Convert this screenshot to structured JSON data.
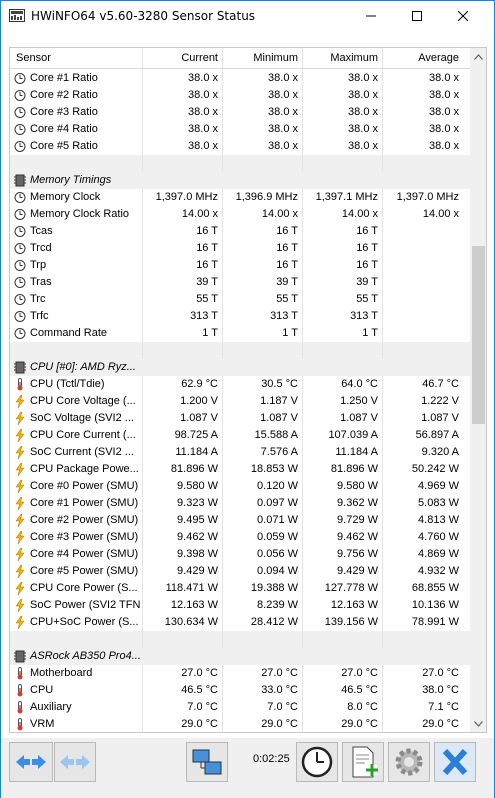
{
  "window": {
    "title": "HWiNFO64 v5.60-3280 Sensor Status"
  },
  "columns": {
    "sensor": "Sensor",
    "current": "Current",
    "minimum": "Minimum",
    "maximum": "Maximum",
    "average": "Average"
  },
  "rows": [
    {
      "type": "data",
      "icon": "ratio-icon",
      "name": "Core #1 Ratio",
      "cur": "38.0 x",
      "min": "38.0 x",
      "max": "38.0 x",
      "avg": "38.0 x"
    },
    {
      "type": "data",
      "icon": "ratio-icon",
      "name": "Core #2 Ratio",
      "cur": "38.0 x",
      "min": "38.0 x",
      "max": "38.0 x",
      "avg": "38.0 x"
    },
    {
      "type": "data",
      "icon": "ratio-icon",
      "name": "Core #3 Ratio",
      "cur": "38.0 x",
      "min": "38.0 x",
      "max": "38.0 x",
      "avg": "38.0 x"
    },
    {
      "type": "data",
      "icon": "ratio-icon",
      "name": "Core #4 Ratio",
      "cur": "38.0 x",
      "min": "38.0 x",
      "max": "38.0 x",
      "avg": "38.0 x"
    },
    {
      "type": "data",
      "icon": "ratio-icon",
      "name": "Core #5 Ratio",
      "cur": "38.0 x",
      "min": "38.0 x",
      "max": "38.0 x",
      "avg": "38.0 x"
    },
    {
      "type": "spacer"
    },
    {
      "type": "group",
      "icon": "chip-icon",
      "name": "Memory Timings"
    },
    {
      "type": "data",
      "icon": "clock-icon",
      "name": "Memory Clock",
      "cur": "1,397.0 MHz",
      "min": "1,396.9 MHz",
      "max": "1,397.1 MHz",
      "avg": "1,397.0 MHz"
    },
    {
      "type": "data",
      "icon": "clock-icon",
      "name": "Memory Clock Ratio",
      "cur": "14.00 x",
      "min": "14.00 x",
      "max": "14.00 x",
      "avg": "14.00 x"
    },
    {
      "type": "data",
      "icon": "clock-icon",
      "name": "Tcas",
      "cur": "16 T",
      "min": "16 T",
      "max": "16 T",
      "avg": ""
    },
    {
      "type": "data",
      "icon": "clock-icon",
      "name": "Trcd",
      "cur": "16 T",
      "min": "16 T",
      "max": "16 T",
      "avg": ""
    },
    {
      "type": "data",
      "icon": "clock-icon",
      "name": "Trp",
      "cur": "16 T",
      "min": "16 T",
      "max": "16 T",
      "avg": ""
    },
    {
      "type": "data",
      "icon": "clock-icon",
      "name": "Tras",
      "cur": "39 T",
      "min": "39 T",
      "max": "39 T",
      "avg": ""
    },
    {
      "type": "data",
      "icon": "clock-icon",
      "name": "Trc",
      "cur": "55 T",
      "min": "55 T",
      "max": "55 T",
      "avg": ""
    },
    {
      "type": "data",
      "icon": "clock-icon",
      "name": "Trfc",
      "cur": "313 T",
      "min": "313 T",
      "max": "313 T",
      "avg": ""
    },
    {
      "type": "data",
      "icon": "clock-icon",
      "name": "Command Rate",
      "cur": "1 T",
      "min": "1 T",
      "max": "1 T",
      "avg": ""
    },
    {
      "type": "spacer"
    },
    {
      "type": "group",
      "icon": "chip-icon",
      "name": "CPU [#0]: AMD Ryz..."
    },
    {
      "type": "data",
      "icon": "thermometer-icon",
      "name": "CPU (Tctl/Tdie)",
      "cur": "62.9 °C",
      "min": "30.5 °C",
      "max": "64.0 °C",
      "avg": "46.7 °C"
    },
    {
      "type": "data",
      "icon": "bolt-icon",
      "name": "CPU Core Voltage (...",
      "cur": "1.200 V",
      "min": "1.187 V",
      "max": "1.250 V",
      "avg": "1.222 V"
    },
    {
      "type": "data",
      "icon": "bolt-icon",
      "name": "SoC Voltage (SVI2 ...",
      "cur": "1.087 V",
      "min": "1.087 V",
      "max": "1.087 V",
      "avg": "1.087 V"
    },
    {
      "type": "data",
      "icon": "bolt-icon",
      "name": "CPU Core Current (...",
      "cur": "98.725 A",
      "min": "15.588 A",
      "max": "107.039 A",
      "avg": "56.897 A"
    },
    {
      "type": "data",
      "icon": "bolt-icon",
      "name": "SoC Current (SVI2 ...",
      "cur": "11.184 A",
      "min": "7.576 A",
      "max": "11.184 A",
      "avg": "9.320 A"
    },
    {
      "type": "data",
      "icon": "bolt-icon",
      "name": "CPU Package Powe...",
      "cur": "81.896 W",
      "min": "18.853 W",
      "max": "81.896 W",
      "avg": "50.242 W"
    },
    {
      "type": "data",
      "icon": "bolt-icon",
      "name": "Core #0 Power (SMU)",
      "cur": "9.580 W",
      "min": "0.120 W",
      "max": "9.580 W",
      "avg": "4.969 W"
    },
    {
      "type": "data",
      "icon": "bolt-icon",
      "name": "Core #1 Power (SMU)",
      "cur": "9.323 W",
      "min": "0.097 W",
      "max": "9.362 W",
      "avg": "5.083 W"
    },
    {
      "type": "data",
      "icon": "bolt-icon",
      "name": "Core #2 Power (SMU)",
      "cur": "9.495 W",
      "min": "0.071 W",
      "max": "9.729 W",
      "avg": "4.813 W"
    },
    {
      "type": "data",
      "icon": "bolt-icon",
      "name": "Core #3 Power (SMU)",
      "cur": "9.462 W",
      "min": "0.059 W",
      "max": "9.462 W",
      "avg": "4.760 W"
    },
    {
      "type": "data",
      "icon": "bolt-icon",
      "name": "Core #4 Power (SMU)",
      "cur": "9.398 W",
      "min": "0.056 W",
      "max": "9.756 W",
      "avg": "4.869 W"
    },
    {
      "type": "data",
      "icon": "bolt-icon",
      "name": "Core #5 Power (SMU)",
      "cur": "9.429 W",
      "min": "0.094 W",
      "max": "9.429 W",
      "avg": "4.932 W"
    },
    {
      "type": "data",
      "icon": "bolt-icon",
      "name": "CPU Core Power (S...",
      "cur": "118.471 W",
      "min": "19.388 W",
      "max": "127.778 W",
      "avg": "68.855 W"
    },
    {
      "type": "data",
      "icon": "bolt-icon",
      "name": "SoC Power (SVI2 TFN)",
      "cur": "12.163 W",
      "min": "8.239 W",
      "max": "12.163 W",
      "avg": "10.136 W"
    },
    {
      "type": "data",
      "icon": "bolt-icon",
      "name": "CPU+SoC Power (S...",
      "cur": "130.634 W",
      "min": "28.412 W",
      "max": "139.156 W",
      "avg": "78.991 W"
    },
    {
      "type": "spacer"
    },
    {
      "type": "group",
      "icon": "chip-icon",
      "name": "ASRock AB350 Pro4..."
    },
    {
      "type": "data",
      "icon": "thermometer-icon",
      "name": "Motherboard",
      "cur": "27.0 °C",
      "min": "27.0 °C",
      "max": "27.0 °C",
      "avg": "27.0 °C"
    },
    {
      "type": "data",
      "icon": "thermometer-icon",
      "name": "CPU",
      "cur": "46.5 °C",
      "min": "33.0 °C",
      "max": "46.5 °C",
      "avg": "38.0 °C"
    },
    {
      "type": "data",
      "icon": "thermometer-icon",
      "name": "Auxiliary",
      "cur": "7.0 °C",
      "min": "7.0 °C",
      "max": "8.0 °C",
      "avg": "7.1 °C"
    },
    {
      "type": "data",
      "icon": "thermometer-icon",
      "name": "VRM",
      "cur": "29.0 °C",
      "min": "29.0 °C",
      "max": "29.0 °C",
      "avg": "29.0 °C"
    }
  ],
  "toolbar": {
    "elapsed": "0:02:25"
  },
  "colors": {
    "accent": "#1883d7",
    "bolt": "#f5b400",
    "close_btn": "#2b7fd6"
  }
}
